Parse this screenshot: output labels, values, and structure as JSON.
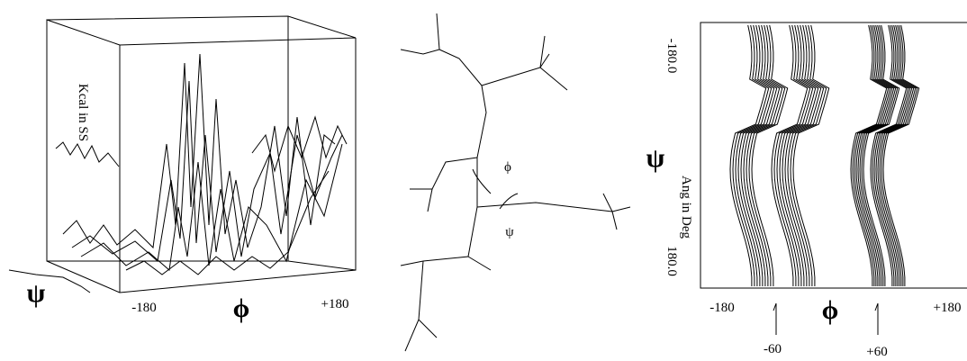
{
  "panels": {
    "surface_plot": {
      "x_min_label": "-180",
      "x_max_label": "+180",
      "x_axis_symbol": "ϕ",
      "y_axis_symbol": "ψ",
      "z_axis_label": "Kcal in SS"
    },
    "molecule": {
      "phi_label": "ϕ",
      "psi_label": "ψ"
    },
    "contour_plot": {
      "y_top_label": "-180.0",
      "y_bottom_label": "180.0",
      "y_unit_label": "Ang in Deg",
      "y_axis_symbol": "ψ",
      "x_min_label": "-180",
      "x_max_label": "+180",
      "x_axis_symbol": "ϕ",
      "marker_left_label": "-60",
      "marker_right_label": "+60"
    }
  }
}
